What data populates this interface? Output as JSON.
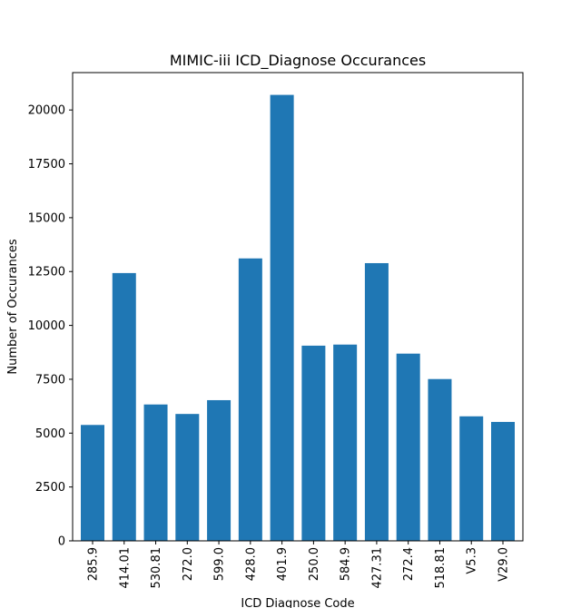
{
  "chart_data": {
    "type": "bar",
    "title": "MIMIC-iii ICD_Diagnose Occurances",
    "xlabel": "ICD Diagnose Code",
    "ylabel": "Number of Occurances",
    "categories": [
      "285.9",
      "414.01",
      "530.81",
      "272.0",
      "599.0",
      "428.0",
      "401.9",
      "250.0",
      "584.9",
      "427.31",
      "272.4",
      "518.81",
      "V5.3",
      "V29.0"
    ],
    "values": [
      5380,
      12430,
      6330,
      5890,
      6530,
      13110,
      20700,
      9060,
      9110,
      12890,
      8690,
      7510,
      5780,
      5520
    ],
    "ylim": [
      0,
      21735
    ],
    "yticks": [
      0,
      2500,
      5000,
      7500,
      10000,
      12500,
      15000,
      17500,
      20000
    ],
    "ytick_labels": [
      "0",
      "2500",
      "5000",
      "7500",
      "10000",
      "12500",
      "15000",
      "17500",
      "20000"
    ],
    "bar_color": "#1f77b4",
    "grid": false,
    "legend": "none"
  }
}
